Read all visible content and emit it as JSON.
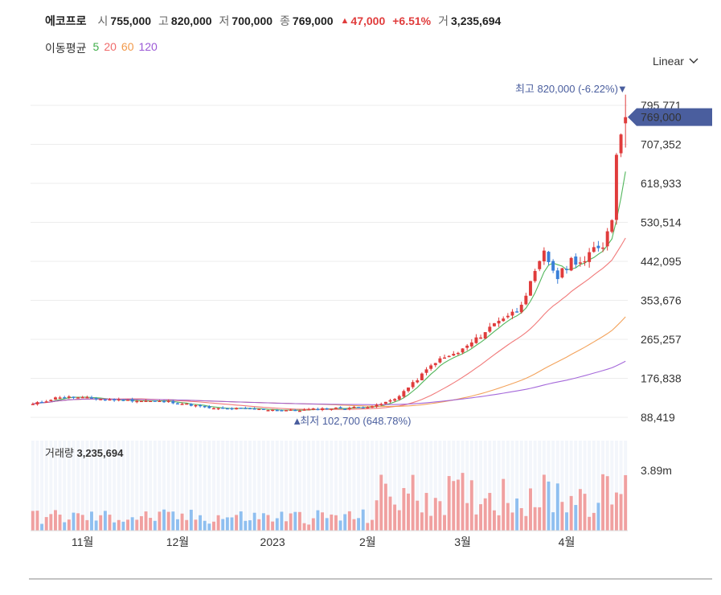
{
  "header": {
    "name": "에코프로",
    "open_label": "시",
    "open": "755,000",
    "high_label": "고",
    "high": "820,000",
    "low_label": "저",
    "low": "700,000",
    "close_label": "종",
    "close": "769,000",
    "change_arrow": "▲",
    "change": "47,000",
    "change_pct": "+6.51%",
    "volume_label": "거",
    "volume": "3,235,694"
  },
  "ma_legend": {
    "title": "이동평균",
    "items": [
      {
        "label": "5",
        "color": "#3fae49"
      },
      {
        "label": "20",
        "color": "#f06b6b"
      },
      {
        "label": "60",
        "color": "#f2994a"
      },
      {
        "label": "120",
        "color": "#9b59d6"
      }
    ]
  },
  "scale_selector": {
    "label": "Linear"
  },
  "chart_data": {
    "type": "candlestick",
    "y_ticks": [
      "795,771",
      "707,352",
      "618,933",
      "530,514",
      "442,095",
      "353,676",
      "265,257",
      "176,838",
      "88,419"
    ],
    "y_tick_values": [
      795771,
      707352,
      618933,
      530514,
      442095,
      353676,
      265257,
      176838,
      88419
    ],
    "x_ticks": [
      "11월",
      "12월",
      "2023",
      "2월",
      "3월",
      "4월"
    ],
    "x_tick_index": [
      11,
      32,
      53,
      74,
      95,
      118
    ],
    "current_price_label": "769,000",
    "current_price": 769000,
    "high_annotation": {
      "text": "최고 820,000 (-6.22%)",
      "value": 820000,
      "index": 129
    },
    "low_annotation": {
      "text": "최저 102,700 (648.78%)",
      "value": 102700,
      "index": 58
    },
    "volume_label": "거래량",
    "volume_value": "3,235,694",
    "volume_tick": "3.89m",
    "volume_tick_value": 3890000,
    "colors": {
      "up": "#e03c3c",
      "down": "#3a7fd8",
      "vol_up": "#f0a0a0",
      "vol_down": "#8fbff0",
      "price_tag": "#4a5e9e"
    }
  }
}
